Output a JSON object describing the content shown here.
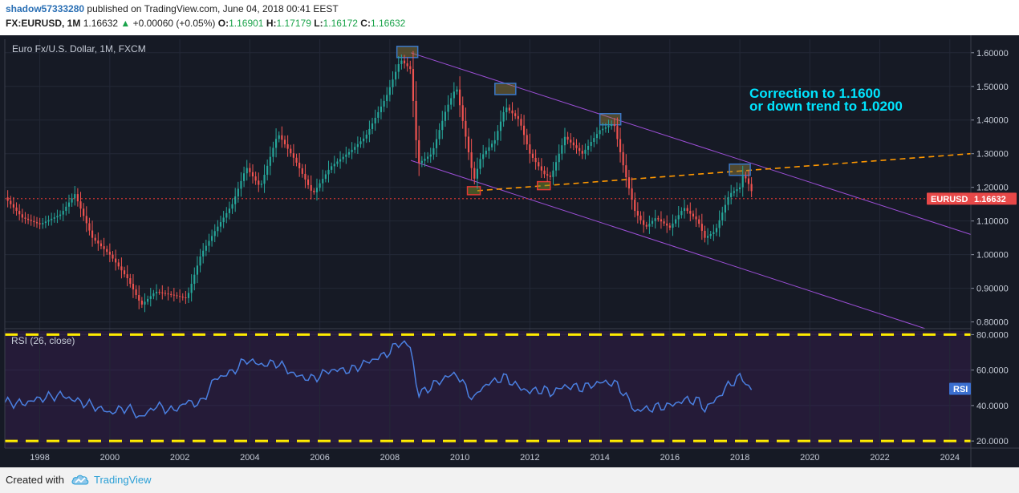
{
  "header": {
    "author": "shadow57333280",
    "published_text": "published on TradingView.com, June 04, 2018 00:41 EEST",
    "symbol_interval": "FX:EURUSD, 1M",
    "last": "1.16632",
    "change_arrow": "▲",
    "change": "+0.00060 (+0.05%)",
    "o_label": "O:",
    "o_value": "1.16901",
    "h_label": "H:",
    "h_value": "1.17179",
    "l_label": "L:",
    "l_value": "1.16172",
    "c_label": "C:",
    "c_value": "1.16632"
  },
  "footer": {
    "created_with": "Created with",
    "brand": "TradingView"
  },
  "colors": {
    "background": "#161a25",
    "rsi_background": "#251b38",
    "up": "#26a69a",
    "down": "#ef5350",
    "channel": "#9c4fd6",
    "trendline": "#ff9800",
    "price_line": "#e53935",
    "rsi_line": "#4a7fe0",
    "rsi_levels": "#ffeb00",
    "annotation": "#00e5ff"
  },
  "chart_data": [
    {
      "type": "candlestick",
      "title": "Euro Fx/U.S. Dollar, 1M, FXCM",
      "x_range": [
        1997,
        2024.6
      ],
      "ylim": [
        0.78,
        1.64
      ],
      "yticks": [
        "0.80000",
        "0.90000",
        "1.00000",
        "1.10000",
        "1.20000",
        "1.30000",
        "1.40000",
        "1.50000",
        "1.60000"
      ],
      "ytick_values": [
        0.8,
        0.9,
        1.0,
        1.1,
        1.2,
        1.3,
        1.4,
        1.5,
        1.6
      ],
      "xticks": [
        "1998",
        "2000",
        "2002",
        "2004",
        "2006",
        "2008",
        "2010",
        "2012",
        "2014",
        "2016",
        "2018",
        "2020",
        "2022",
        "2024"
      ],
      "xtick_values": [
        1998,
        2000,
        2002,
        2004,
        2006,
        2008,
        2010,
        2012,
        2014,
        2016,
        2018,
        2020,
        2022,
        2024
      ],
      "close_path": [
        [
          1997.0,
          1.17
        ],
        [
          1997.5,
          1.11
        ],
        [
          1998.0,
          1.09
        ],
        [
          1998.6,
          1.12
        ],
        [
          1999.0,
          1.18
        ],
        [
          1999.5,
          1.05
        ],
        [
          2000.0,
          1.0
        ],
        [
          2000.5,
          0.93
        ],
        [
          2000.9,
          0.85
        ],
        [
          2001.3,
          0.89
        ],
        [
          2001.8,
          0.88
        ],
        [
          2002.2,
          0.87
        ],
        [
          2002.6,
          1.0
        ],
        [
          2003.0,
          1.07
        ],
        [
          2003.5,
          1.15
        ],
        [
          2003.9,
          1.26
        ],
        [
          2004.3,
          1.2
        ],
        [
          2004.8,
          1.36
        ],
        [
          2005.3,
          1.28
        ],
        [
          2005.8,
          1.18
        ],
        [
          2006.3,
          1.26
        ],
        [
          2006.9,
          1.31
        ],
        [
          2007.3,
          1.35
        ],
        [
          2007.9,
          1.47
        ],
        [
          2008.3,
          1.58
        ],
        [
          2008.6,
          1.55
        ],
        [
          2008.8,
          1.27
        ],
        [
          2009.2,
          1.3
        ],
        [
          2009.6,
          1.43
        ],
        [
          2009.9,
          1.5
        ],
        [
          2010.4,
          1.22
        ],
        [
          2010.6,
          1.29
        ],
        [
          2011.0,
          1.34
        ],
        [
          2011.3,
          1.44
        ],
        [
          2011.7,
          1.4
        ],
        [
          2012.0,
          1.3
        ],
        [
          2012.4,
          1.24
        ],
        [
          2012.6,
          1.23
        ],
        [
          2013.0,
          1.35
        ],
        [
          2013.5,
          1.3
        ],
        [
          2014.0,
          1.37
        ],
        [
          2014.4,
          1.39
        ],
        [
          2014.7,
          1.25
        ],
        [
          2015.0,
          1.13
        ],
        [
          2015.3,
          1.08
        ],
        [
          2015.6,
          1.11
        ],
        [
          2016.0,
          1.08
        ],
        [
          2016.4,
          1.14
        ],
        [
          2016.8,
          1.1
        ],
        [
          2017.0,
          1.05
        ],
        [
          2017.3,
          1.07
        ],
        [
          2017.7,
          1.18
        ],
        [
          2018.0,
          1.2
        ],
        [
          2018.1,
          1.24
        ],
        [
          2018.3,
          1.2
        ],
        [
          2018.4,
          1.1663
        ]
      ],
      "last_price_label": "EURUSD",
      "last_price_value": "1.16632",
      "last_price": 1.16632,
      "annotation_line1": "Correction to 1.1600",
      "annotation_line2": "or down trend to 1.0200",
      "channel_upper": [
        [
          2008.6,
          1.6
        ],
        [
          2024.6,
          1.06
        ]
      ],
      "channel_lower": [
        [
          2008.6,
          1.28
        ],
        [
          2023.3,
          0.78
        ]
      ],
      "orange_trendline": [
        [
          2010.5,
          1.19
        ],
        [
          2024.6,
          1.3
        ]
      ],
      "top_boxes": [
        [
          2008.5,
          1.6
        ],
        [
          2011.3,
          1.49
        ],
        [
          2014.3,
          1.4
        ],
        [
          2018.0,
          1.25
        ]
      ],
      "bottom_boxes": [
        [
          2010.4,
          1.19
        ],
        [
          2012.4,
          1.205
        ]
      ]
    },
    {
      "type": "line",
      "title": "RSI (26, close)",
      "ylim": [
        16,
        82
      ],
      "yticks": [
        "20.0000",
        "40.0000",
        "60.0000",
        "80.0000"
      ],
      "ytick_values": [
        20,
        40,
        60,
        80
      ],
      "levels": [
        80,
        20
      ],
      "last_label": "RSI",
      "series": [
        {
          "name": "RSI",
          "x": [
            1997.0,
            1997.5,
            1998.0,
            1998.6,
            1999.0,
            1999.5,
            2000.0,
            2000.5,
            2000.9,
            2001.3,
            2001.8,
            2002.2,
            2002.6,
            2003.0,
            2003.5,
            2003.9,
            2004.3,
            2004.8,
            2005.3,
            2005.8,
            2006.3,
            2006.9,
            2007.3,
            2007.9,
            2008.3,
            2008.6,
            2008.8,
            2009.2,
            2009.6,
            2009.9,
            2010.4,
            2010.6,
            2011.0,
            2011.3,
            2011.7,
            2012.0,
            2012.4,
            2012.6,
            2013.0,
            2013.5,
            2014.0,
            2014.4,
            2014.7,
            2015.0,
            2015.3,
            2015.6,
            2016.0,
            2016.4,
            2016.8,
            2017.0,
            2017.3,
            2017.7,
            2018.0,
            2018.1,
            2018.3,
            2018.4
          ],
          "values": [
            42,
            41,
            44,
            46,
            43,
            40,
            36,
            39,
            33,
            40,
            37,
            42,
            41,
            55,
            59,
            66,
            63,
            64,
            57,
            55,
            60,
            60,
            64,
            69,
            76,
            73,
            46,
            51,
            56,
            58,
            43,
            50,
            54,
            56,
            50,
            48,
            49,
            47,
            51,
            50,
            53,
            53,
            47,
            37,
            38,
            39,
            40,
            43,
            43,
            38,
            43,
            52,
            56,
            55,
            49,
            49
          ]
        }
      ]
    }
  ]
}
